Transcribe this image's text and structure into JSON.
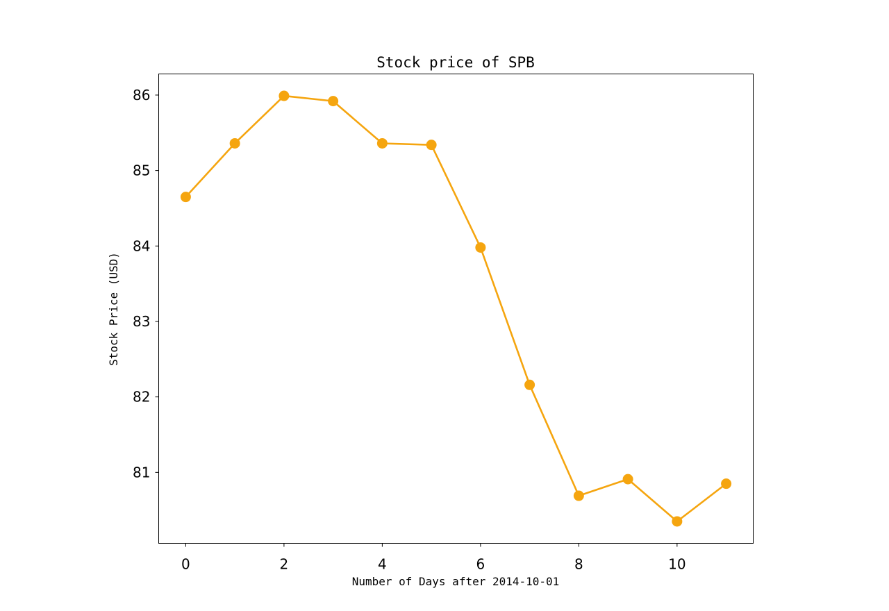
{
  "chart_data": {
    "type": "line",
    "title": "Stock price of SPB",
    "xlabel": "Number of Days after 2014-10-01",
    "ylabel": "Stock Price (USD)",
    "x": [
      0,
      1,
      2,
      3,
      4,
      5,
      6,
      7,
      8,
      9,
      10,
      11
    ],
    "series": [
      {
        "values": [
          84.65,
          85.36,
          85.99,
          85.92,
          85.36,
          85.34,
          83.98,
          82.16,
          80.69,
          80.91,
          80.35,
          80.85
        ],
        "color": "#f5a50f",
        "marker": "circle"
      }
    ],
    "xlim": [
      -0.55,
      11.55
    ],
    "ylim": [
      80.06,
      86.28
    ],
    "xticks": [
      0,
      2,
      4,
      6,
      8,
      10
    ],
    "yticks": [
      81,
      82,
      83,
      84,
      85,
      86
    ],
    "grid": false,
    "legend": "none"
  }
}
